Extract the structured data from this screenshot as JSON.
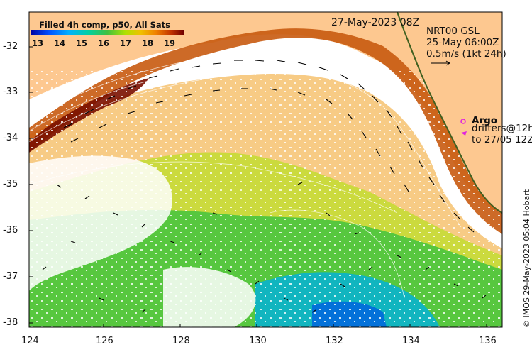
{
  "title": {
    "date": "27-May-2023 08Z"
  },
  "colorbar": {
    "title": "Filled 4h comp, p50, All Sats",
    "ticks": [
      "13",
      "14",
      "15",
      "16",
      "17",
      "18",
      "19"
    ],
    "colors": [
      "#0000a0",
      "#0040ff",
      "#00a0ff",
      "#00d8d0",
      "#20c060",
      "#60d020",
      "#c0e000",
      "#f0c000",
      "#f08000",
      "#d04000",
      "#a01000",
      "#700000"
    ]
  },
  "current_info": {
    "line1": "NRT00 GSL",
    "line2": "25-May 06:00Z",
    "line3": "0.5m/s (1kt 24h)"
  },
  "legend": {
    "argo": "Argo",
    "drifters_line1": "drifters@12h",
    "drifters_line2": "to 27/05 12Z",
    "argo_color": "#e020e0"
  },
  "credit": "© IMOS 29-May-2023 05:04 Hobart",
  "axes": {
    "y_labels": [
      "-32",
      "-33",
      "-34",
      "-35",
      "-36",
      "-37",
      "-38"
    ],
    "x_labels": [
      "124",
      "126",
      "128",
      "130",
      "132",
      "134",
      "136"
    ]
  },
  "colors": {
    "land": "#fdc890",
    "background": "#ffffff"
  }
}
